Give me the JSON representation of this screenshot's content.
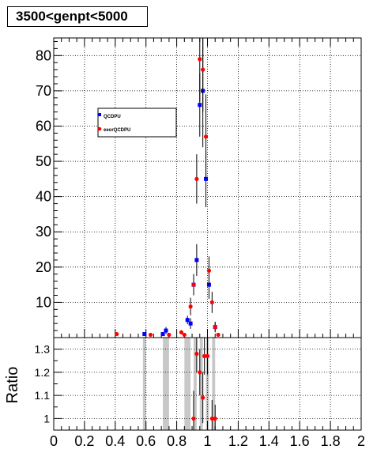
{
  "title": "3500<genpt<5000",
  "chart_data": [
    {
      "type": "scatter",
      "panel": "main",
      "xlim": [
        0,
        2
      ],
      "ylim": [
        0,
        85
      ],
      "grid": true,
      "legend_position": "upper-left",
      "x_ticks": [
        "0",
        "0.2",
        "0.4",
        "0.6",
        "0.8",
        "1",
        "1.2",
        "1.4",
        "1.6",
        "1.8",
        "2"
      ],
      "y_ticks": [
        "10",
        "20",
        "30",
        "40",
        "50",
        "60",
        "70",
        "80"
      ],
      "series": [
        {
          "name": "QCDPU",
          "color": "#0000ff",
          "marker": "square",
          "points": [
            {
              "x": 0.59,
              "y": 1.0,
              "err": 0.5
            },
            {
              "x": 0.71,
              "y": 1.0,
              "err": 0.5
            },
            {
              "x": 0.73,
              "y": 2.0,
              "err": 1.0
            },
            {
              "x": 0.87,
              "y": 5.0,
              "err": 1.2
            },
            {
              "x": 0.89,
              "y": 4.0,
              "err": 1.5
            },
            {
              "x": 0.91,
              "y": 15.0,
              "err": 3.0
            },
            {
              "x": 0.93,
              "y": 22.0,
              "err": 4.5
            },
            {
              "x": 0.95,
              "y": 66.0,
              "err": 9.0
            },
            {
              "x": 0.97,
              "y": 70.0,
              "err": 16.0
            },
            {
              "x": 0.99,
              "y": 45.0,
              "err": 8.0
            },
            {
              "x": 1.01,
              "y": 15.0,
              "err": 4.0
            },
            {
              "x": 1.05,
              "y": 3.0,
              "err": 1.5
            }
          ]
        },
        {
          "name": "eeorQCDPU",
          "color": "#ff0000",
          "marker": "circle",
          "points": [
            {
              "x": 0.41,
              "y": 1.0,
              "err": 0.3
            },
            {
              "x": 0.63,
              "y": 0.8,
              "err": 0.3
            },
            {
              "x": 0.75,
              "y": 0.8,
              "err": 0.4
            },
            {
              "x": 0.83,
              "y": 1.5,
              "err": 0.6
            },
            {
              "x": 0.85,
              "y": 0.8,
              "err": 0.5
            },
            {
              "x": 0.89,
              "y": 8.8,
              "err": 2.5
            },
            {
              "x": 0.91,
              "y": 15.0,
              "err": 3.0
            },
            {
              "x": 0.93,
              "y": 45.0,
              "err": 7.0
            },
            {
              "x": 0.95,
              "y": 79.0,
              "err": 12.0
            },
            {
              "x": 0.97,
              "y": 76.0,
              "err": 12.0
            },
            {
              "x": 0.99,
              "y": 57.0,
              "err": 12.0
            },
            {
              "x": 1.01,
              "y": 19.0,
              "err": 4.0
            },
            {
              "x": 1.03,
              "y": 10.0,
              "err": 3.0
            },
            {
              "x": 1.05,
              "y": 3.0,
              "err": 1.2
            },
            {
              "x": 1.07,
              "y": 0.8,
              "err": 0.5
            }
          ]
        }
      ]
    },
    {
      "type": "scatter",
      "panel": "ratio",
      "ylabel": "Ratio",
      "xlim": [
        0,
        2
      ],
      "ylim": [
        0.95,
        1.35
      ],
      "grid": true,
      "y_ticks": [
        "1",
        "1.1",
        "1.2",
        "1.3"
      ],
      "bands": [
        {
          "x0": 0.58,
          "x1": 0.6
        },
        {
          "x0": 0.71,
          "x1": 0.75
        },
        {
          "x0": 0.85,
          "x1": 0.89
        },
        {
          "x0": 0.91,
          "x1": 0.93
        },
        {
          "x0": 0.95,
          "x1": 0.97
        },
        {
          "x0": 0.99,
          "x1": 1.01
        },
        {
          "x0": 1.03,
          "x1": 1.05
        }
      ],
      "series": [
        {
          "name": "ratio",
          "color": "#ff0000",
          "marker": "circle",
          "points": [
            {
              "x": 0.91,
              "y": 1.0,
              "err": 0.12
            },
            {
              "x": 0.93,
              "y": 1.28,
              "err": 0.08
            },
            {
              "x": 0.95,
              "y": 1.2,
              "err": 0.1
            },
            {
              "x": 0.97,
              "y": 1.09,
              "err": 0.11
            },
            {
              "x": 0.98,
              "y": 1.27,
              "err": 0.08
            },
            {
              "x": 1.0,
              "y": 1.27,
              "err": 0.08
            },
            {
              "x": 1.03,
              "y": 1.0,
              "err": 0.08
            },
            {
              "x": 1.05,
              "y": 1.0,
              "err": 0.06
            }
          ]
        }
      ]
    }
  ]
}
